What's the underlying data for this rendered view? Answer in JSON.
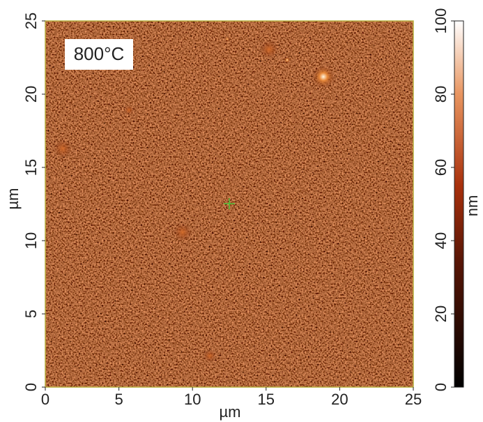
{
  "chart_data": {
    "type": "image",
    "annotation": "800°C",
    "xlabel": "µm",
    "ylabel": "µm",
    "xlim": [
      0,
      25
    ],
    "xticks": [
      0,
      5,
      10,
      15,
      20,
      25
    ],
    "ylim": [
      0,
      25
    ],
    "yticks": [
      0,
      5,
      10,
      15,
      20,
      25
    ],
    "colorbar": {
      "label": "nm",
      "lim": [
        0,
        100
      ],
      "ticks": [
        0,
        20,
        40,
        60,
        80,
        100
      ]
    }
  }
}
